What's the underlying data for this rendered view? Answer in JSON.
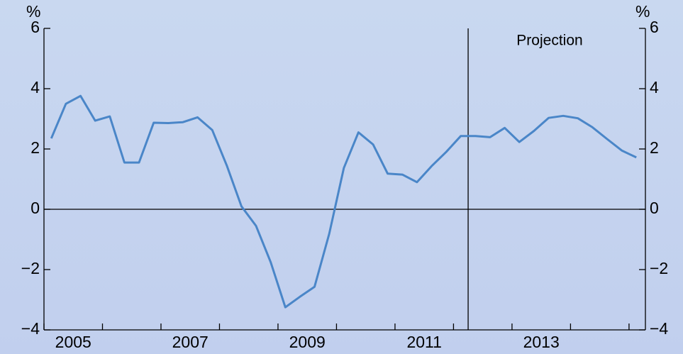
{
  "chart_data": {
    "type": "line",
    "x": [
      2005.125,
      2005.375,
      2005.625,
      2005.875,
      2006.125,
      2006.375,
      2006.625,
      2006.875,
      2007.125,
      2007.375,
      2007.625,
      2007.875,
      2008.125,
      2008.375,
      2008.625,
      2008.875,
      2009.125,
      2009.375,
      2009.625,
      2009.875,
      2010.125,
      2010.375,
      2010.625,
      2010.875,
      2011.125,
      2011.375,
      2011.625,
      2011.875,
      2012.125,
      2012.375,
      2012.625,
      2012.875,
      2013.125,
      2013.375,
      2013.625,
      2013.875,
      2014.125,
      2014.375,
      2014.625,
      2014.875,
      2015.125
    ],
    "values": [
      2.35,
      3.5,
      3.76,
      2.94,
      3.08,
      1.55,
      1.55,
      2.87,
      2.86,
      2.89,
      3.05,
      2.63,
      1.45,
      0.1,
      -0.55,
      -1.75,
      -3.25,
      -2.9,
      -2.57,
      -0.82,
      1.37,
      2.55,
      2.15,
      1.18,
      1.15,
      0.9,
      1.43,
      1.9,
      2.43,
      2.43,
      2.39,
      2.7,
      2.23,
      2.6,
      3.03,
      3.1,
      3.02,
      2.72,
      2.33,
      1.95,
      1.72
    ],
    "color": "#4a86c8",
    "xlim": [
      2005,
      2015.28
    ],
    "xticks": [
      {
        "value": 2005.5,
        "label": "2005"
      },
      {
        "value": 2007.5,
        "label": "2007"
      },
      {
        "value": 2009.5,
        "label": "2009"
      },
      {
        "value": 2011.5,
        "label": "2011"
      },
      {
        "value": 2013.5,
        "label": "2013"
      }
    ],
    "xminor_ticks": [
      2005,
      2006,
      2007,
      2008,
      2009,
      2010,
      2011,
      2012,
      2013,
      2014,
      2015
    ],
    "ylim": [
      -4,
      6
    ],
    "yticks": [
      -4,
      -2,
      0,
      2,
      4,
      6
    ],
    "yticks_labels": [
      "−4",
      "−2",
      "0",
      "2",
      "4",
      "6"
    ],
    "y2lim": [
      -4,
      6
    ],
    "y2ticks": [
      -4,
      -2,
      0,
      2,
      4,
      6
    ],
    "ylabel": "%",
    "y2label": "%",
    "projection_x": 2012.25,
    "annotation": "Projection"
  }
}
